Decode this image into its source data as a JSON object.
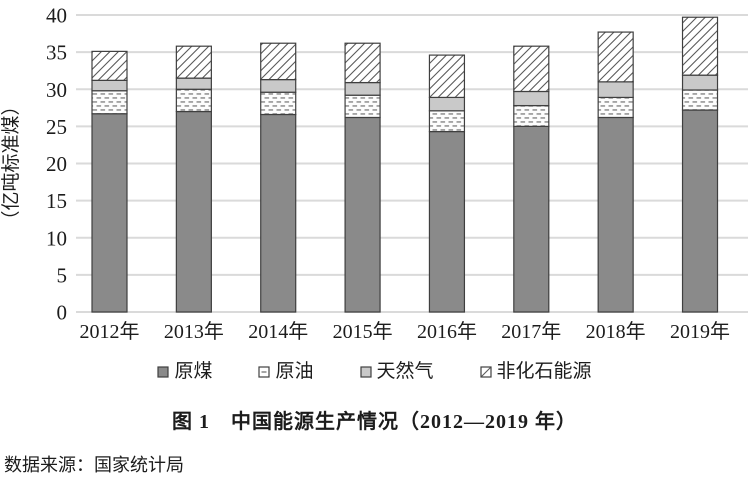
{
  "figure": {
    "caption": "图 1　中国能源生产情况（2012—2019 年）",
    "source": "数据来源：国家统计局"
  },
  "chart_data": {
    "type": "bar",
    "stacked": true,
    "title": "图 1　中国能源生产情况（2012—2019 年）",
    "xlabel": "",
    "ylabel": "（亿吨标准煤）",
    "ylim": [
      0,
      40
    ],
    "ytick_step": 5,
    "grid": true,
    "legend_position": "bottom",
    "categories": [
      "2012年",
      "2013年",
      "2014年",
      "2015年",
      "2016年",
      "2017年",
      "2018年",
      "2019年"
    ],
    "series": [
      {
        "name": "原煤",
        "pattern": "solid-dark-gray",
        "color": "#8a8a8a",
        "values": [
          26.7,
          27.0,
          26.6,
          26.2,
          24.3,
          25.0,
          26.2,
          27.2
        ]
      },
      {
        "name": "原油",
        "pattern": "dash-dot-rows",
        "color": "#8f8f8f",
        "values": [
          3.1,
          3.0,
          3.0,
          3.0,
          2.8,
          2.8,
          2.7,
          2.7
        ]
      },
      {
        "name": "天然气",
        "pattern": "solid-light-gray",
        "color": "#c9c9c9",
        "values": [
          1.4,
          1.5,
          1.7,
          1.7,
          1.8,
          1.9,
          2.1,
          2.0
        ]
      },
      {
        "name": "非化石能源",
        "pattern": "diagonal-hatch",
        "color": "#5a5a5a",
        "values": [
          3.9,
          4.3,
          4.9,
          5.3,
          5.7,
          6.1,
          6.7,
          7.8
        ]
      }
    ],
    "totals": [
      35.1,
      35.8,
      36.2,
      36.2,
      34.6,
      35.8,
      37.7,
      39.7
    ]
  },
  "legend": {
    "items": [
      {
        "label": "原煤"
      },
      {
        "label": "原油"
      },
      {
        "label": "天然气"
      },
      {
        "label": "非化石能源"
      }
    ]
  },
  "colors": {
    "coal_fill": "#8a8a8a",
    "gas_fill": "#c9c9c9",
    "pattern_stroke": "#8f8f8f",
    "hatch_stroke": "#5a5a5a",
    "bar_border": "#3f3f3f",
    "gridline": "#dadada",
    "text": "#1c1c1c"
  }
}
